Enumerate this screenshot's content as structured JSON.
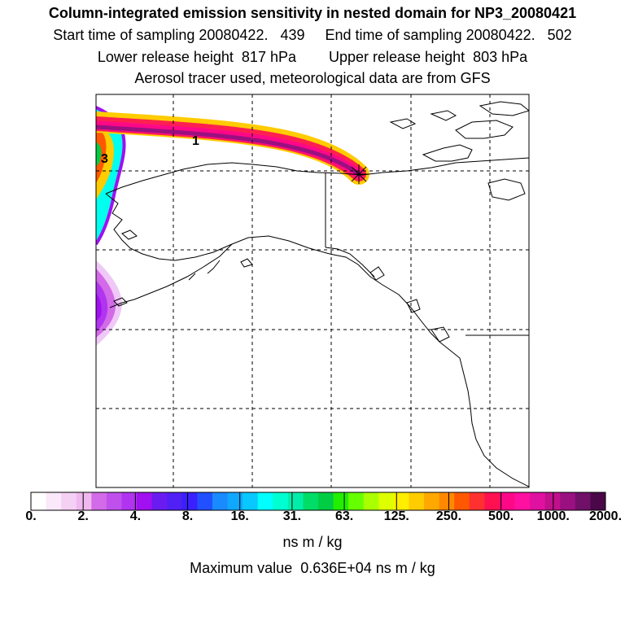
{
  "header": {
    "title": "Column-integrated emission sensitivity in nested domain for NP3_20080421",
    "line2": "Start time of sampling 20080422.   439     End time of sampling 20080422.   502",
    "line3": "Lower release height  817 hPa        Upper release height  803 hPa",
    "line4": "Aerosol tracer used, meteorological data are from GFS"
  },
  "map": {
    "contour_labels": [
      "1",
      "3"
    ],
    "release_marker": "star-icon"
  },
  "colorbar": {
    "colors": [
      "#ffffff",
      "#fbe8fb",
      "#f5d0f5",
      "#efb8ef",
      "#d36ae8",
      "#c050ec",
      "#b034f0",
      "#a010f0",
      "#6a1cf0",
      "#5020f5",
      "#3a20ff",
      "#2050ff",
      "#1a8aff",
      "#10a8ff",
      "#08c8ff",
      "#00ffff",
      "#00ffd0",
      "#00eeaa",
      "#00dd66",
      "#00cc44",
      "#22ee00",
      "#66ff00",
      "#aaff00",
      "#ddff00",
      "#ffee00",
      "#ffcc00",
      "#ffa800",
      "#ff8800",
      "#ff5800",
      "#ff3030",
      "#ff1050",
      "#ff0888",
      "#ff10a0",
      "#e010a0",
      "#c0108c",
      "#9a1080",
      "#701068",
      "#4a0848"
    ],
    "ticks": [
      "0.",
      "2.",
      "4.",
      "8.",
      "16.",
      "31.",
      "63.",
      "125.",
      "250.",
      "500.",
      "1000.",
      "2000."
    ],
    "unit": "ns m / kg"
  },
  "footer": {
    "max_value": "Maximum value  0.636E+04 ns m / kg"
  }
}
